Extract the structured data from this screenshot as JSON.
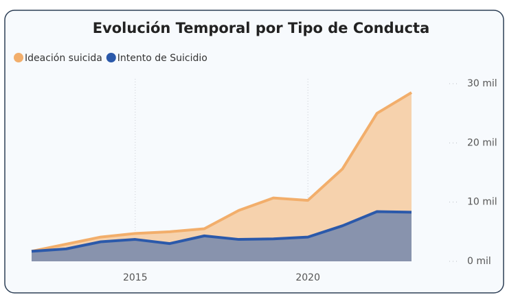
{
  "chart_data": {
    "type": "area",
    "title": "Evolución Temporal por Tipo de Conducta",
    "x": [
      2012,
      2013,
      2014,
      2015,
      2016,
      2017,
      2018,
      2019,
      2020,
      2021,
      2022,
      2023
    ],
    "series": [
      {
        "name": "Ideación suicida",
        "color": "#f2ae6b",
        "fill": "#f6d2ad",
        "values": [
          1700,
          2900,
          4100,
          4700,
          5000,
          5500,
          8600,
          10700,
          10300,
          15600,
          25000,
          28500
        ]
      },
      {
        "name": "Intento de Suicidio",
        "color": "#2b59aa",
        "fill": "#8893ad",
        "values": [
          1700,
          2100,
          3300,
          3700,
          3000,
          4300,
          3700,
          3800,
          4100,
          6000,
          8400,
          8300
        ]
      }
    ],
    "xlim": [
      2012,
      2023
    ],
    "xticks": [
      2015,
      2020
    ],
    "ylim": [
      0,
      30000
    ],
    "yticks": [
      {
        "value": 0,
        "label": "0 mil"
      },
      {
        "value": 10000,
        "label": "10 mil"
      },
      {
        "value": 20000,
        "label": "20 mil"
      },
      {
        "value": 30000,
        "label": "30 mil"
      }
    ],
    "legend": "top-left",
    "grid": true
  }
}
